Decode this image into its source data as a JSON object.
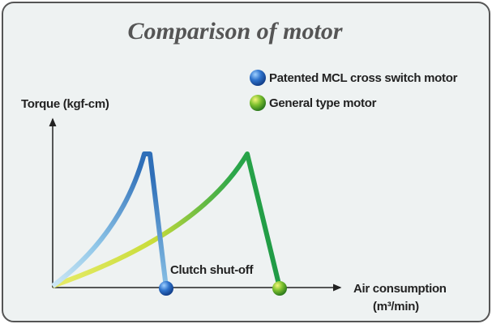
{
  "title": "Comparison of motor",
  "legend": [
    {
      "label": "Patented MCL cross switch motor"
    },
    {
      "label": "General type motor"
    }
  ],
  "y_axis": {
    "label": "Torque (kgf-cm)"
  },
  "x_axis": {
    "label": [
      "Air consumption",
      "(m³/min)"
    ]
  },
  "annotation": "Clutch shut-off"
}
